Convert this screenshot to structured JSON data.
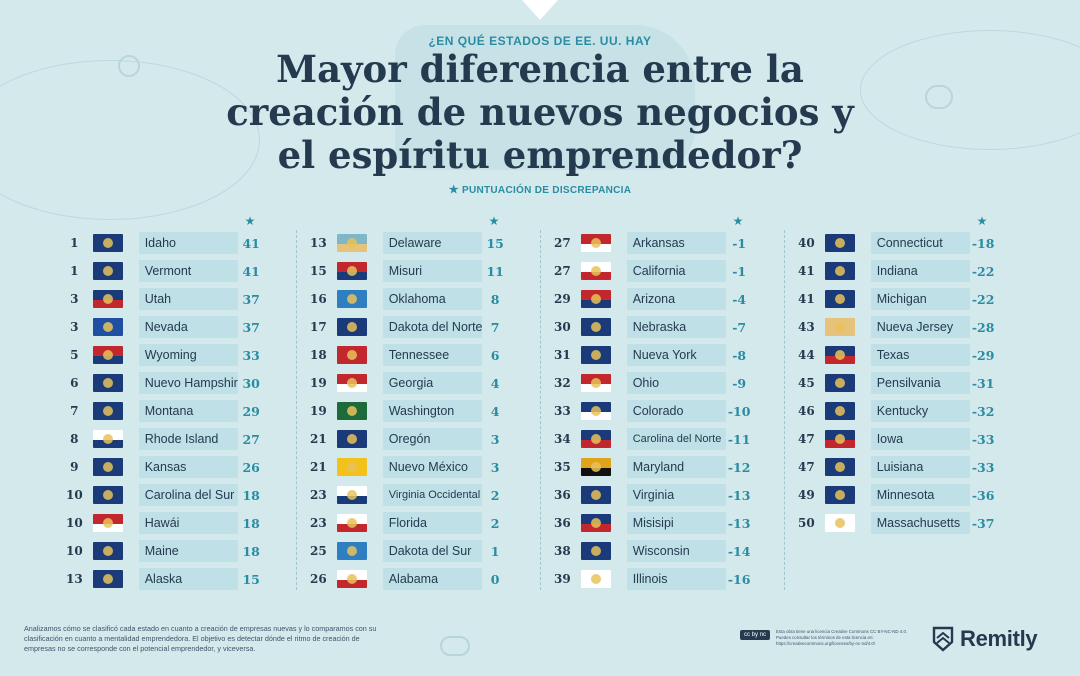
{
  "header": {
    "eyebrow": "¿EN QUÉ ESTADOS DE EE. UU. HAY",
    "title_line1": "Mayor diferencia entre la",
    "title_line2": "creación de nuevos negocios y",
    "title_line3": "el espíritu emprendedor?",
    "subtitle": "PUNTUACIÓN DE DISCREPANCIA",
    "star": "★"
  },
  "colors": {
    "background": "#d3e9ec",
    "row_bg": "#bfe0e6",
    "accent": "#2a8ca3",
    "text": "#243a4f"
  },
  "columns": [
    [
      {
        "rank": "1",
        "state": "Idaho",
        "score": "41",
        "flag": [
          "#1b3a7a",
          "#1b3a7a"
        ]
      },
      {
        "rank": "1",
        "state": "Vermont",
        "score": "41",
        "flag": [
          "#1b3a7a",
          "#1b3a7a"
        ]
      },
      {
        "rank": "3",
        "state": "Utah",
        "score": "37",
        "flag": [
          "#1b3a7a",
          "#c2272d"
        ]
      },
      {
        "rank": "3",
        "state": "Nevada",
        "score": "37",
        "flag": [
          "#1e4fa3",
          "#1e4fa3"
        ]
      },
      {
        "rank": "5",
        "state": "Wyoming",
        "score": "33",
        "flag": [
          "#c2272d",
          "#1b3a7a"
        ]
      },
      {
        "rank": "6",
        "state": "Nuevo Hampshire",
        "score": "30",
        "flag": [
          "#1b3a7a",
          "#1b3a7a"
        ]
      },
      {
        "rank": "7",
        "state": "Montana",
        "score": "29",
        "flag": [
          "#1b3a7a",
          "#1b3a7a"
        ]
      },
      {
        "rank": "8",
        "state": "Rhode Island",
        "score": "27",
        "flag": [
          "#ffffff",
          "#1b3a7a"
        ]
      },
      {
        "rank": "9",
        "state": "Kansas",
        "score": "26",
        "flag": [
          "#1b3a7a",
          "#1b3a7a"
        ]
      },
      {
        "rank": "10",
        "state": "Carolina del Sur",
        "score": "18",
        "flag": [
          "#1b3a7a",
          "#1b3a7a"
        ]
      },
      {
        "rank": "10",
        "state": "Hawái",
        "score": "18",
        "flag": [
          "#c2272d",
          "#ffffff"
        ]
      },
      {
        "rank": "10",
        "state": "Maine",
        "score": "18",
        "flag": [
          "#1b3a7a",
          "#1b3a7a"
        ]
      },
      {
        "rank": "13",
        "state": "Alaska",
        "score": "15",
        "flag": [
          "#1b3a7a",
          "#1b3a7a"
        ]
      }
    ],
    [
      {
        "rank": "13",
        "state": "Delaware",
        "score": "15",
        "flag": [
          "#7fb7c9",
          "#e6c37a"
        ]
      },
      {
        "rank": "15",
        "state": "Misuri",
        "score": "11",
        "flag": [
          "#c2272d",
          "#1b3a7a"
        ]
      },
      {
        "rank": "16",
        "state": "Oklahoma",
        "score": "8",
        "flag": [
          "#2d7fc1",
          "#2d7fc1"
        ]
      },
      {
        "rank": "17",
        "state": "Dakota del Norte",
        "score": "7",
        "flag": [
          "#1b3a7a",
          "#1b3a7a"
        ]
      },
      {
        "rank": "18",
        "state": "Tennessee",
        "score": "6",
        "flag": [
          "#c2272d",
          "#c2272d"
        ]
      },
      {
        "rank": "19",
        "state": "Georgia",
        "score": "4",
        "flag": [
          "#c2272d",
          "#ffffff"
        ]
      },
      {
        "rank": "19",
        "state": "Washington",
        "score": "4",
        "flag": [
          "#1d6b3a",
          "#1d6b3a"
        ]
      },
      {
        "rank": "21",
        "state": "Oregón",
        "score": "3",
        "flag": [
          "#1b3a7a",
          "#1b3a7a"
        ]
      },
      {
        "rank": "21",
        "state": "Nuevo México",
        "score": "3",
        "flag": [
          "#f2c21b",
          "#f2c21b"
        ]
      },
      {
        "rank": "23",
        "state": "Virginia Occidental",
        "score": "2",
        "flag": [
          "#ffffff",
          "#1b3a7a"
        ]
      },
      {
        "rank": "23",
        "state": "Florida",
        "score": "2",
        "flag": [
          "#ffffff",
          "#c2272d"
        ]
      },
      {
        "rank": "25",
        "state": "Dakota del Sur",
        "score": "1",
        "flag": [
          "#2d7fc1",
          "#2d7fc1"
        ]
      },
      {
        "rank": "26",
        "state": "Alabama",
        "score": "0",
        "flag": [
          "#ffffff",
          "#c2272d"
        ]
      }
    ],
    [
      {
        "rank": "27",
        "state": "Arkansas",
        "score": "-1",
        "flag": [
          "#c2272d",
          "#ffffff"
        ]
      },
      {
        "rank": "27",
        "state": "California",
        "score": "-1",
        "flag": [
          "#ffffff",
          "#c2272d"
        ]
      },
      {
        "rank": "29",
        "state": "Arizona",
        "score": "-4",
        "flag": [
          "#c2272d",
          "#1b3a7a"
        ]
      },
      {
        "rank": "30",
        "state": "Nebraska",
        "score": "-7",
        "flag": [
          "#1b3a7a",
          "#1b3a7a"
        ]
      },
      {
        "rank": "31",
        "state": "Nueva York",
        "score": "-8",
        "flag": [
          "#1b3a7a",
          "#1b3a7a"
        ]
      },
      {
        "rank": "32",
        "state": "Ohio",
        "score": "-9",
        "flag": [
          "#c2272d",
          "#ffffff"
        ]
      },
      {
        "rank": "33",
        "state": "Colorado",
        "score": "-10",
        "flag": [
          "#1b3a7a",
          "#ffffff"
        ]
      },
      {
        "rank": "34",
        "state": "Carolina del Norte",
        "score": "-11",
        "flag": [
          "#1b3a7a",
          "#c2272d"
        ]
      },
      {
        "rank": "35",
        "state": "Maryland",
        "score": "-12",
        "flag": [
          "#e0a31c",
          "#111111"
        ]
      },
      {
        "rank": "36",
        "state": "Virginia",
        "score": "-13",
        "flag": [
          "#1b3a7a",
          "#1b3a7a"
        ]
      },
      {
        "rank": "36",
        "state": "Misisipi",
        "score": "-13",
        "flag": [
          "#1b3a7a",
          "#c2272d"
        ]
      },
      {
        "rank": "38",
        "state": "Wisconsin",
        "score": "-14",
        "flag": [
          "#1b3a7a",
          "#1b3a7a"
        ]
      },
      {
        "rank": "39",
        "state": "Illinois",
        "score": "-16",
        "flag": [
          "#ffffff",
          "#ffffff"
        ]
      }
    ],
    [
      {
        "rank": "40",
        "state": "Connecticut",
        "score": "-18",
        "flag": [
          "#1b3a7a",
          "#1b3a7a"
        ]
      },
      {
        "rank": "41",
        "state": "Indiana",
        "score": "-22",
        "flag": [
          "#1b3a7a",
          "#1b3a7a"
        ]
      },
      {
        "rank": "41",
        "state": "Michigan",
        "score": "-22",
        "flag": [
          "#1b3a7a",
          "#1b3a7a"
        ]
      },
      {
        "rank": "43",
        "state": "Nueva Jersey",
        "score": "-28",
        "flag": [
          "#e6c37a",
          "#e6c37a"
        ]
      },
      {
        "rank": "44",
        "state": "Texas",
        "score": "-29",
        "flag": [
          "#1b3a7a",
          "#c2272d"
        ]
      },
      {
        "rank": "45",
        "state": "Pensilvania",
        "score": "-31",
        "flag": [
          "#1b3a7a",
          "#1b3a7a"
        ]
      },
      {
        "rank": "46",
        "state": "Kentucky",
        "score": "-32",
        "flag": [
          "#1b3a7a",
          "#1b3a7a"
        ]
      },
      {
        "rank": "47",
        "state": "Iowa",
        "score": "-33",
        "flag": [
          "#1b3a7a",
          "#c2272d"
        ]
      },
      {
        "rank": "47",
        "state": "Luisiana",
        "score": "-33",
        "flag": [
          "#1b3a7a",
          "#1b3a7a"
        ]
      },
      {
        "rank": "49",
        "state": "Minnesota",
        "score": "-36",
        "flag": [
          "#1b3a7a",
          "#1b3a7a"
        ]
      },
      {
        "rank": "50",
        "state": "Massachusetts",
        "score": "-37",
        "flag": [
          "#ffffff",
          "#ffffff"
        ]
      }
    ]
  ],
  "footer": {
    "methodology": "Analizamos cómo se clasificó cada estado en cuanto a creación de empresas nuevas y lo comparamos con su clasificación en cuanto a mentalidad emprendedora. El objetivo es detectar dónde el ritmo de creación de empresas no se corresponde con el potencial emprendedor, y viceversa.",
    "cc_badge": "cc by nc",
    "license": "Esta obra tiene una licencia Creative Commons CC BY-NC-ND 4.0. Puedes consultar los términos de esta licencia en: https://creativecommons.org/licenses/by-nc-nd/4.0/",
    "logo": "Remitly"
  }
}
